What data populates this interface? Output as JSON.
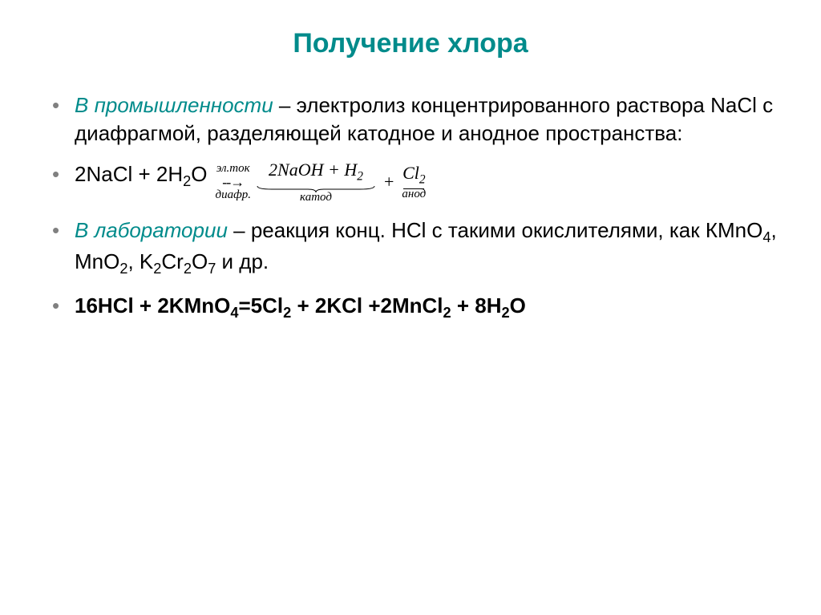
{
  "colors": {
    "title": "#008b8b",
    "accent": "#008b8b",
    "bullet": "#808080",
    "text": "#000000",
    "background": "#ffffff"
  },
  "fonts": {
    "title_size": 34,
    "body_size": 26,
    "sub_sup_size": 18,
    "annotation_size": 15,
    "serif_eq_size": 22
  },
  "title": "Получение хлора",
  "items": [
    {
      "prefix_em": "В промышленности",
      "dash": " – ",
      "rest": "электролиз концентрированного раствора NaCl с диафрагмой, разделяющей катодное и анодное пространства:"
    },
    {
      "equation_left_html": "2NaCl + 2H<sub>2</sub>O",
      "arrow_top": "эл.ток",
      "arrow_mid": "--→",
      "arrow_bot": "диафр.",
      "prod_cathode_html": "2NaOH + H<sub>2</sub>",
      "cathode_label": "катод",
      "plus": "+",
      "prod_anode_html": "Cl<sub>2</sub>",
      "anode_label": "анод"
    },
    {
      "prefix_em": "В лаборатории",
      "dash": " – ",
      "rest_html": "реакция конц. HCl с такими окислителями, как КMnO<sub>4</sub>, MnO<sub>2</sub>, K<sub>2</sub>Cr<sub>2</sub>O<sub>7</sub> и др."
    },
    {
      "bold_eq_html": "16HCl + 2KMnO<sub>4</sub>=5Cl<sub>2</sub> + 2KCl +2MnCl<sub>2</sub> + 8H<sub>2</sub>O"
    }
  ]
}
